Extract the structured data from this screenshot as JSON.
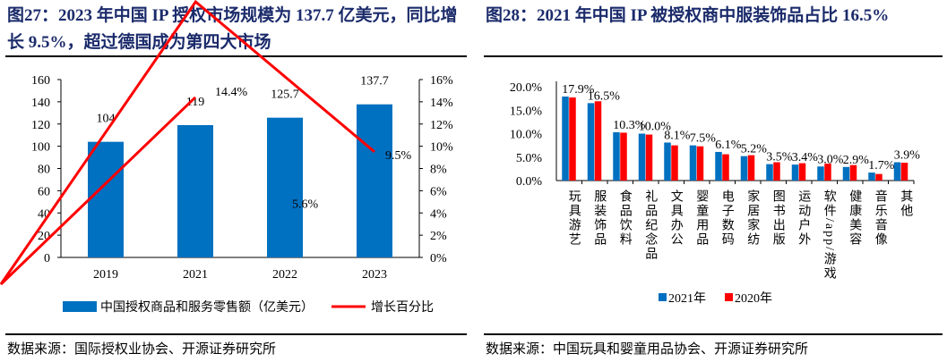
{
  "left": {
    "title": "图27：2023 年中国 IP 授权市场规模为 137.7 亿美元，同比增长 9.5%，超过德国成为第四大市场",
    "source": "数据来源：国际授权业协会、开源证券研究所"
  },
  "right": {
    "title": "图28：2021 年中国 IP 被授权商中服装饰品占比 16.5%",
    "source": "数据来源：中国玩具和婴童用品协会、开源证券研究所"
  },
  "chart_data": [
    {
      "type": "bar+line",
      "categories": [
        "2019",
        "2021",
        "2022",
        "2023"
      ],
      "series": [
        {
          "name": "中国授权商品和服务零售额（亿美元）",
          "type": "bar",
          "axis": "left",
          "color": "#0070c0",
          "values": [
            104,
            119,
            125.7,
            137.7
          ],
          "labels": [
            "104",
            "119",
            "125.7",
            "137.7"
          ]
        },
        {
          "name": "增长百分比",
          "type": "line",
          "axis": "right",
          "color": "#ff0000",
          "values": [
            null,
            14.4,
            5.6,
            9.5
          ],
          "labels": [
            "",
            "14.4%",
            "5.6%",
            "9.5%"
          ]
        }
      ],
      "ylim": [
        0,
        160
      ],
      "yticks": [
        "0",
        "20",
        "40",
        "60",
        "80",
        "100",
        "120",
        "140",
        "160"
      ],
      "y2lim": [
        0,
        16
      ],
      "y2ticks": [
        "0%",
        "2%",
        "4%",
        "6%",
        "8%",
        "10%",
        "12%",
        "14%",
        "16%"
      ],
      "legend": "bottom"
    },
    {
      "type": "bar",
      "categories": [
        "玩具游艺",
        "服装饰品",
        "食品饮料",
        "礼品纪念品",
        "文具办公",
        "婴童用品",
        "电子数码",
        "家居家纺",
        "图书出版",
        "运动户外",
        "软件/app/游戏",
        "健康美容",
        "音乐音像",
        "其他"
      ],
      "series": [
        {
          "name": "2021年",
          "color": "#0070c0",
          "values": [
            17.9,
            16.5,
            10.3,
            10.0,
            8.1,
            7.5,
            6.1,
            5.2,
            3.5,
            3.4,
            3.0,
            2.9,
            1.7,
            3.9
          ],
          "labels": [
            "17.9%",
            "16.5%",
            "10.3%",
            "10.0%",
            "8.1%",
            "7.5%",
            "6.1%",
            "5.2%",
            "3.5%",
            "3.4%",
            "3.0%",
            "2.9%",
            "1.7%",
            "3.9%"
          ]
        },
        {
          "name": "2020年",
          "color": "#ff0000",
          "values": [
            17.7,
            16.9,
            10.2,
            9.8,
            7.5,
            7.3,
            5.6,
            5.4,
            3.9,
            3.7,
            3.6,
            3.3,
            1.4,
            3.8
          ]
        }
      ],
      "ylim": [
        0,
        20
      ],
      "yticks": [
        "0.0%",
        "5.0%",
        "10.0%",
        "15.0%",
        "20.0%"
      ],
      "legend": "bottom"
    }
  ]
}
